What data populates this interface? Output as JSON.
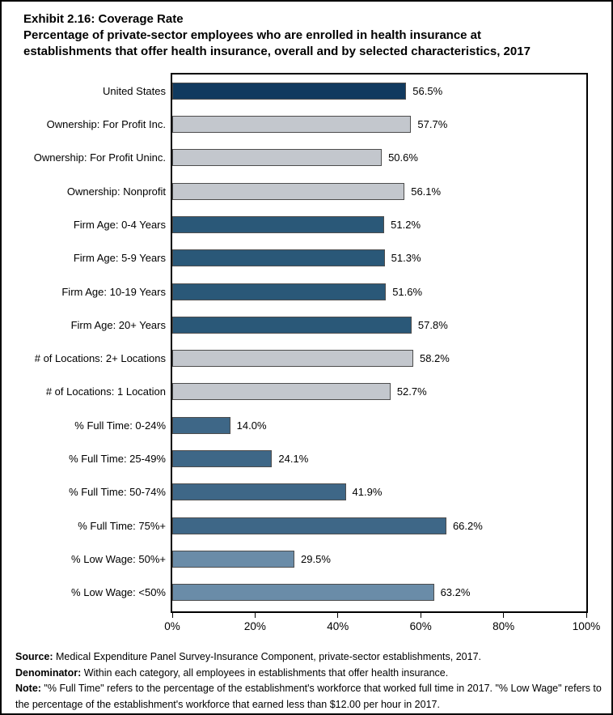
{
  "title": {
    "line1": "Exhibit 2.16: Coverage Rate",
    "subtitle": "Percentage of private-sector employees who are enrolled in health insurance at establishments that offer health insurance, overall and by selected characteristics, 2017"
  },
  "chart_data": {
    "type": "bar",
    "orientation": "horizontal",
    "title": "Exhibit 2.16: Coverage Rate",
    "categories": [
      "United States",
      "Ownership: For Profit Inc.",
      "Ownership: For Profit Uninc.",
      "Ownership: Nonprofit",
      "Firm Age: 0-4 Years",
      "Firm Age: 5-9 Years",
      "Firm Age: 10-19 Years",
      "Firm Age: 20+ Years",
      "# of Locations: 2+ Locations",
      "# of Locations: 1 Location",
      "% Full Time: 0-24%",
      "% Full Time: 25-49%",
      "% Full Time: 50-74%",
      "% Full Time: 75%+",
      "% Low Wage: 50%+",
      "% Low Wage: <50%"
    ],
    "values": [
      56.5,
      57.7,
      50.6,
      56.1,
      51.2,
      51.3,
      51.6,
      57.8,
      58.2,
      52.7,
      14.0,
      24.1,
      41.9,
      66.2,
      29.5,
      63.2
    ],
    "value_labels": [
      "56.5%",
      "57.7%",
      "50.6%",
      "56.1%",
      "51.2%",
      "51.3%",
      "51.6%",
      "57.8%",
      "58.2%",
      "52.7%",
      "14.0%",
      "24.1%",
      "41.9%",
      "66.2%",
      "29.5%",
      "63.2%"
    ],
    "bar_colors": [
      "#113A5F",
      "#C3C7CD",
      "#C3C7CD",
      "#C3C7CD",
      "#2A5878",
      "#2A5878",
      "#2A5878",
      "#2A5878",
      "#C3C7CD",
      "#C3C7CD",
      "#3E6787",
      "#3E6787",
      "#3E6787",
      "#3E6787",
      "#6A8CA8",
      "#6A8CA8"
    ],
    "group_colors": {
      "united_states": "#113A5F",
      "ownership_and_locations_gray": "#C3C7CD",
      "firm_age": "#2A5878",
      "full_time": "#3E6787",
      "low_wage": "#6A8CA8",
      "bar_border": "#4D4D4D"
    },
    "xlabel": "",
    "ylabel": "",
    "xlim": [
      0,
      100
    ],
    "x_tick_values": [
      0,
      20,
      40,
      60,
      80,
      100
    ],
    "x_tick_labels": [
      "0%",
      "20%",
      "40%",
      "60%",
      "80%",
      "100%"
    ],
    "grid": false,
    "legend": false
  },
  "footnotes": [
    {
      "prefix": "Source:",
      "text": " Medical Expenditure Panel Survey-Insurance Component, private-sector establishments, 2017."
    },
    {
      "prefix": "Denominator:",
      "text": " Within each category, all employees in establishments that offer health insurance."
    },
    {
      "prefix": "Note:",
      "text": " \"% Full Time\" refers to the percentage of the establishment's workforce that worked full time in 2017. \"% Low Wage\" refers to the percentage of the establishment's workforce that earned less than $12.00 per hour in 2017."
    }
  ]
}
